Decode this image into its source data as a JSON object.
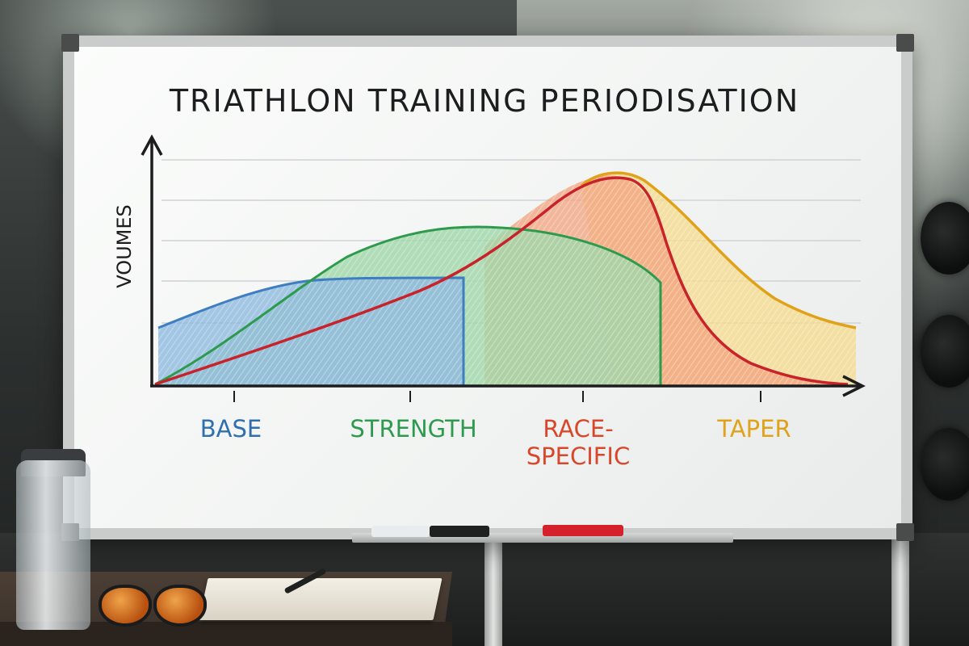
{
  "board": {
    "title": "TRIATHLON TRAINING PERIODISATION",
    "y_axis_label": "VOUMES"
  },
  "phases": [
    {
      "id": "base",
      "line1": "BASE",
      "line2": "",
      "color": "#2f6fb0"
    },
    {
      "id": "strength",
      "line1": "STRENGTH",
      "line2": "",
      "color": "#2e9a4e"
    },
    {
      "id": "race-specific",
      "line1": "RACE-",
      "line2": "SPECIFIC",
      "color": "#d9472a"
    },
    {
      "id": "taper",
      "line1": "TAPER",
      "line2": "",
      "color": "#e0a21a"
    }
  ],
  "colors": {
    "base_fill": "#8fb9df",
    "strength_fill": "#9fd7a9",
    "race_fill": "#f2a27e",
    "taper_fill": "#f6d98a",
    "race_line": "#c8232b",
    "axis": "#1d1d1f",
    "gridline": "#cfd3d6"
  }
}
